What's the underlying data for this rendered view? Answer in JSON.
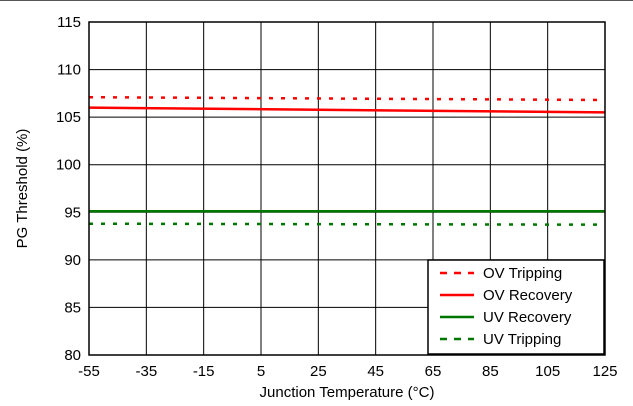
{
  "chart_data": {
    "type": "line",
    "title": "",
    "xlabel": "Junction Temperature (°C)",
    "ylabel": "PG Threshold (%)",
    "xlim": [
      -55,
      125
    ],
    "ylim": [
      80,
      115
    ],
    "xticks": [
      -55,
      -35,
      -15,
      5,
      25,
      45,
      65,
      85,
      105,
      125
    ],
    "yticks": [
      80,
      85,
      90,
      95,
      100,
      105,
      110,
      115
    ],
    "x_tick_labels": [
      "-55",
      "-35",
      "-15",
      "5",
      "25",
      "45",
      "65",
      "85",
      "105",
      "125"
    ],
    "y_tick_labels": [
      "80",
      "85",
      "90",
      "95",
      "100",
      "105",
      "110",
      "115"
    ],
    "grid": true,
    "legend_position": "bottom-right",
    "series": [
      {
        "name": "OV Tripping",
        "color": "#ff0000",
        "style": "dotted",
        "x": [
          -55,
          125
        ],
        "y": [
          107.1,
          106.8
        ]
      },
      {
        "name": "OV Recovery",
        "color": "#ff0000",
        "style": "solid",
        "x": [
          -55,
          125
        ],
        "y": [
          106.0,
          105.5
        ]
      },
      {
        "name": "UV Recovery",
        "color": "#007700",
        "style": "solid",
        "x": [
          -55,
          125
        ],
        "y": [
          95.1,
          95.1
        ]
      },
      {
        "name": "UV Tripping",
        "color": "#007700",
        "style": "dotted",
        "x": [
          -55,
          125
        ],
        "y": [
          93.8,
          93.7
        ]
      }
    ]
  }
}
